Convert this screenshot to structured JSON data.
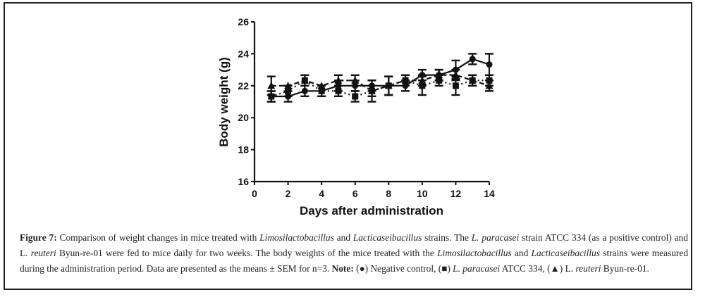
{
  "chart_data": {
    "type": "line",
    "title": "",
    "xlabel": "Days after administration",
    "ylabel": "Body weight (g)",
    "xlim": [
      0,
      14
    ],
    "ylim": [
      16,
      26
    ],
    "xticks": [
      0,
      2,
      4,
      6,
      8,
      10,
      12,
      14
    ],
    "yticks": [
      16,
      18,
      20,
      22,
      24,
      26
    ],
    "grid": false,
    "legend": "none (described in caption)",
    "x": [
      1,
      2,
      3,
      4,
      5,
      6,
      7,
      8,
      9,
      10,
      11,
      12,
      13,
      14
    ],
    "series": [
      {
        "name": "Negative control",
        "marker": "circle",
        "line": "solid",
        "values": [
          21.33,
          21.33,
          21.67,
          21.67,
          22.0,
          22.0,
          22.0,
          22.0,
          22.0,
          22.67,
          22.67,
          23.0,
          23.67,
          23.33
        ],
        "sem": [
          0.33,
          0.33,
          0.33,
          0.33,
          0.33,
          0.33,
          0.33,
          0.58,
          0.33,
          0.33,
          0.33,
          0.58,
          0.33,
          0.67
        ]
      },
      {
        "name": "L. paracasei ATCC 334",
        "marker": "square",
        "line": "dotted",
        "values": [
          21.33,
          21.67,
          22.33,
          21.67,
          21.67,
          21.33,
          21.67,
          22.0,
          22.33,
          22.0,
          22.33,
          22.0,
          22.33,
          22.33
        ],
        "sem": [
          0.33,
          0.33,
          0.33,
          0.33,
          0.33,
          0.33,
          0.67,
          0.58,
          0.33,
          0.58,
          0.33,
          0.58,
          0.33,
          0.33
        ]
      },
      {
        "name": "L. reuteri Byun-re-01",
        "marker": "triangle",
        "line": "dashed",
        "values": [
          22.0,
          22.0,
          22.33,
          22.0,
          22.33,
          22.33,
          21.67,
          22.0,
          22.33,
          22.33,
          22.67,
          22.67,
          22.33,
          22.0
        ],
        "sem": [
          0.58,
          0.0,
          0.33,
          0.0,
          0.33,
          0.33,
          0.33,
          0.58,
          0.33,
          0.33,
          0.33,
          0.33,
          0.33,
          0.33
        ]
      }
    ]
  },
  "caption": {
    "label": "Figure 7:",
    "segments": [
      {
        "t": " Comparison of weight changes in mice treated with ",
        "s": "n"
      },
      {
        "t": "Limosilactobacillus",
        "s": "i"
      },
      {
        "t": " and ",
        "s": "n"
      },
      {
        "t": "Lacticaseibacillus",
        "s": "i"
      },
      {
        "t": " strains. The ",
        "s": "n"
      },
      {
        "t": "L. paracasei",
        "s": "i"
      },
      {
        "t": " strain ATCC 334 (as a positive control) and L. ",
        "s": "n"
      },
      {
        "t": "reuteri",
        "s": "i"
      },
      {
        "t": " Byun-re-01 were fed to mice daily for two weeks. The body weights of the mice treated with the ",
        "s": "n"
      },
      {
        "t": "Limosilactobacillus",
        "s": "i"
      },
      {
        "t": " and ",
        "s": "n"
      },
      {
        "t": "Lacticaseibacillus",
        "s": "i"
      },
      {
        "t": " strains were measured during the administration period. Data are presented as the means ± SEM for n=3. ",
        "s": "n"
      },
      {
        "t": "Note:",
        "s": "b"
      },
      {
        "t": " (●) Negative control, (■) ",
        "s": "n"
      },
      {
        "t": "L. paracasei",
        "s": "i"
      },
      {
        "t": " ATCC 334, (▲) L. ",
        "s": "n"
      },
      {
        "t": "reuteri",
        "s": "i"
      },
      {
        "t": " Byun-re-01.",
        "s": "n"
      }
    ]
  },
  "colors": {
    "ink": "#111111",
    "border": "#222222"
  }
}
